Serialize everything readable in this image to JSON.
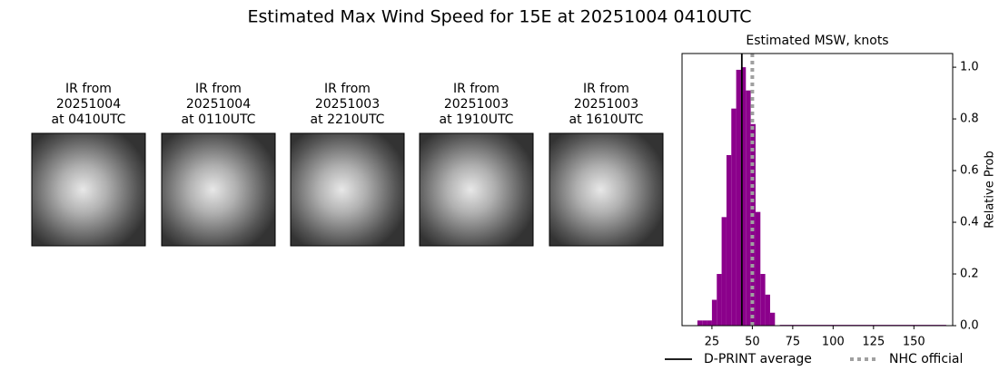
{
  "title": "Estimated Max Wind Speed for 15E at 20251004 0410UTC",
  "panels": [
    {
      "lines": [
        "IR from",
        "20251004",
        "at 0410UTC"
      ]
    },
    {
      "lines": [
        "IR from",
        "20251004",
        "at 0110UTC"
      ]
    },
    {
      "lines": [
        "IR from",
        "20251003",
        "at 2210UTC"
      ]
    },
    {
      "lines": [
        "IR from",
        "20251003",
        "at 1910UTC"
      ]
    },
    {
      "lines": [
        "IR from",
        "20251003",
        "at 1610UTC"
      ]
    }
  ],
  "chart_data": {
    "type": "histogram",
    "title": "Estimated MSW, knots",
    "ylabel": "Relative Prob",
    "bins": [
      16,
      19,
      22,
      25,
      28,
      31,
      34,
      37,
      40,
      43,
      46,
      49,
      52,
      55,
      58,
      61,
      64,
      67,
      170
    ],
    "values": [
      0.02,
      0.02,
      0.02,
      0.1,
      0.2,
      0.42,
      0.66,
      0.84,
      0.99,
      1.0,
      0.91,
      0.78,
      0.44,
      0.2,
      0.12,
      0.05,
      0.0,
      0.003
    ],
    "color": "#8b008b",
    "xlim": [
      6.5,
      174
    ],
    "xticks": [
      25,
      50,
      75,
      100,
      125,
      150
    ],
    "ylim": [
      0,
      1.053
    ],
    "yticks": [
      {
        "value": 0,
        "label": "0.0"
      },
      0.2,
      0.4,
      0.6,
      0.8,
      {
        "value": 1,
        "label": "1.0"
      }
    ],
    "lines": [
      {
        "name": "D-PRINT average",
        "value": 43.5,
        "color": "#000000",
        "style": "solid"
      },
      {
        "name": "NHC official",
        "value": 50,
        "color": "#a0a0a0",
        "style": "dotted"
      }
    ]
  }
}
